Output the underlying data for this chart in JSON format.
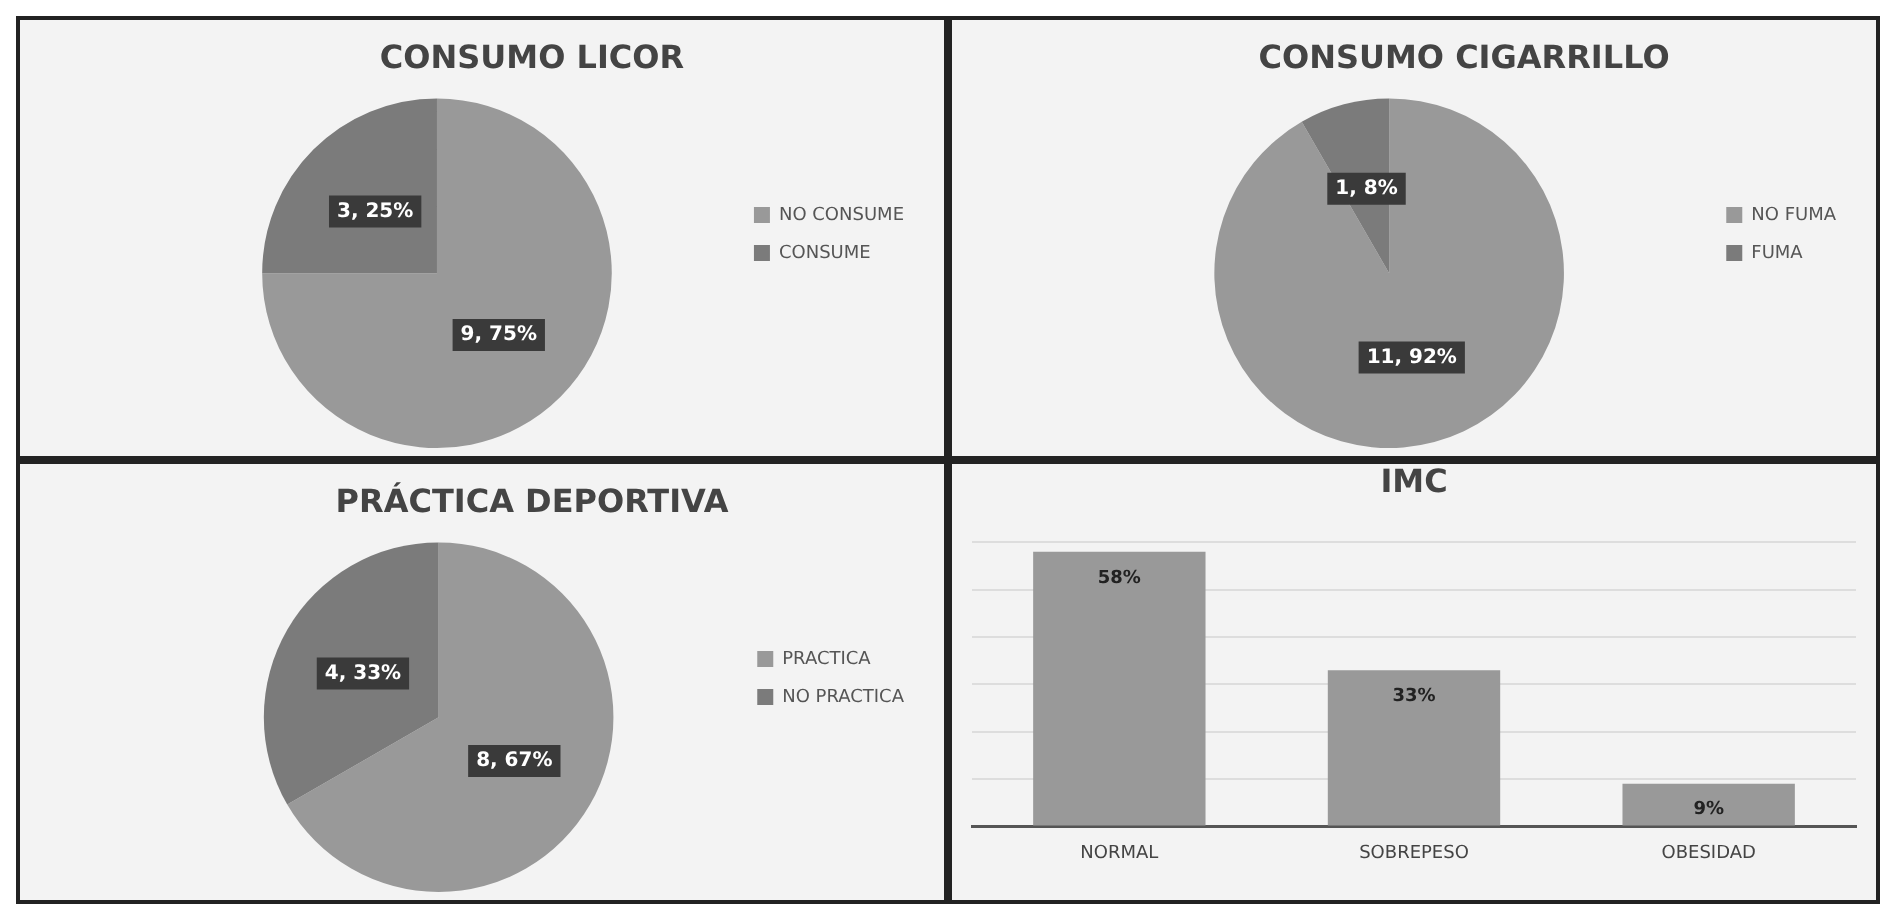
{
  "chart_data": [
    {
      "type": "pie",
      "title": "CONSUMO LICOR",
      "categories": [
        "NO CONSUME",
        "CONSUME"
      ],
      "values": [
        9,
        3
      ],
      "colors": [
        "#999999",
        "#7b7b7b"
      ],
      "value_labels": [
        "9, 75%",
        "3, 25%"
      ],
      "legend": "right"
    },
    {
      "type": "pie",
      "title": "CONSUMO CIGARRILLO",
      "categories": [
        "NO FUMA",
        "FUMA"
      ],
      "values": [
        11,
        1
      ],
      "colors": [
        "#999999",
        "#7b7b7b"
      ],
      "value_labels": [
        "11, 92%",
        "1, 8%"
      ],
      "legend": "right"
    },
    {
      "type": "pie",
      "title": "PRÁCTICA DEPORTIVA",
      "categories": [
        "PRACTICA",
        "NO PRACTICA"
      ],
      "values": [
        8,
        4
      ],
      "colors": [
        "#999999",
        "#7b7b7b"
      ],
      "value_labels": [
        "8, 67%",
        "4, 33%"
      ],
      "legend": "right"
    },
    {
      "type": "bar",
      "title": "IMC",
      "categories": [
        "NORMAL",
        "SOBREPESO",
        "OBESIDAD"
      ],
      "values": [
        58,
        33,
        9
      ],
      "color": "#999999",
      "value_labels": [
        "58%",
        "33%",
        "9%"
      ],
      "ylim": [
        0,
        60
      ],
      "yticks": [
        {
          "value": 0,
          "label": null
        },
        {
          "value": 10,
          "label": null
        },
        {
          "value": 20,
          "label": null
        },
        {
          "value": 30,
          "label": null
        },
        {
          "value": 40,
          "label": null
        },
        {
          "value": 50,
          "label": null
        },
        {
          "value": 60,
          "label": null
        }
      ],
      "tick_labels": "x",
      "grid": "y"
    }
  ]
}
